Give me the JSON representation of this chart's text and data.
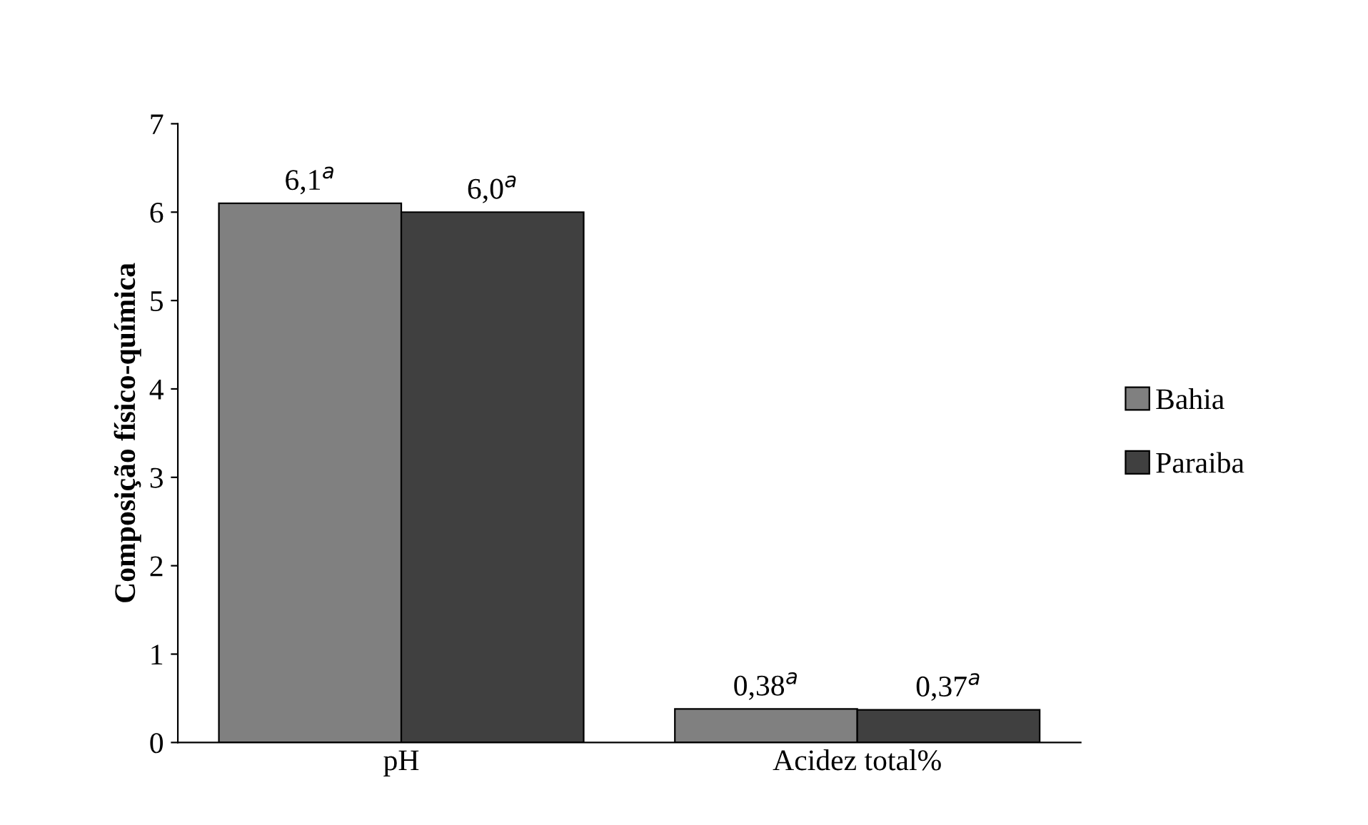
{
  "chart_data": {
    "type": "bar",
    "ylabel": "Composição físico-química",
    "categories": [
      "pH",
      "Acidez total%"
    ],
    "series": [
      {
        "name": "Bahia",
        "color": "#808080",
        "values": [
          6.1,
          0.38
        ],
        "value_labels": [
          "6,1$^{a}$",
          "0,38$^{a}$"
        ]
      },
      {
        "name": "Paraiba",
        "color": "#404040",
        "values": [
          6.0,
          0.37
        ],
        "value_labels": [
          "6,0$^{a}$",
          "0,37$^{a}$"
        ]
      }
    ],
    "ylim": [
      0,
      7
    ],
    "yticks": [
      0,
      1,
      2,
      3,
      4,
      5,
      6,
      7
    ],
    "grid": false,
    "legend": "right"
  }
}
